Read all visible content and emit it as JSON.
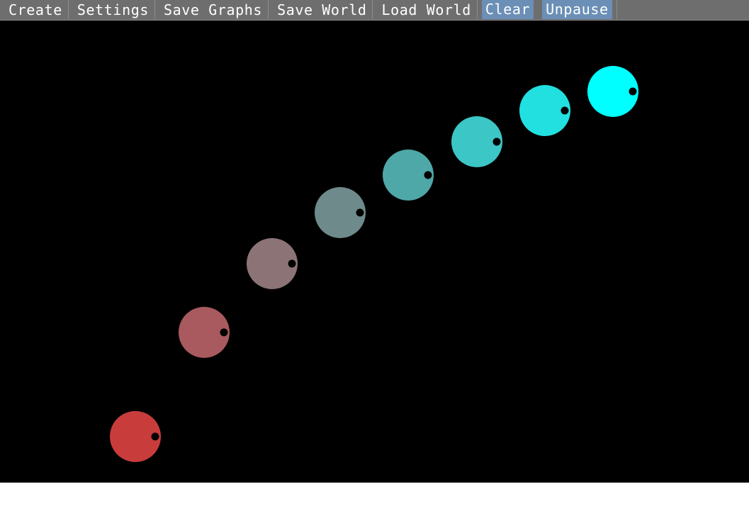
{
  "menu": {
    "items": [
      {
        "label": "Create",
        "active": false
      },
      {
        "label": "Settings",
        "active": false
      },
      {
        "label": "Save Graphs",
        "active": false
      },
      {
        "label": "Save World",
        "active": false
      },
      {
        "label": "Load World",
        "active": false
      },
      {
        "label": "Clear",
        "active": true
      },
      {
        "label": "Unpause",
        "active": true
      }
    ]
  },
  "colors": {
    "menubar": "#6e6e6e",
    "active_highlight": "#6b8fb6",
    "world_background": "#000000",
    "creature_dot": "#000000"
  },
  "creatures": [
    {
      "color": "#c83c3c"
    },
    {
      "color": "#a85a5e"
    },
    {
      "color": "#8c7476"
    },
    {
      "color": "#6e8a8a"
    },
    {
      "color": "#4ea8a8"
    },
    {
      "color": "#3cc6c6"
    },
    {
      "color": "#22e0e0"
    },
    {
      "color": "#00ffff"
    }
  ]
}
